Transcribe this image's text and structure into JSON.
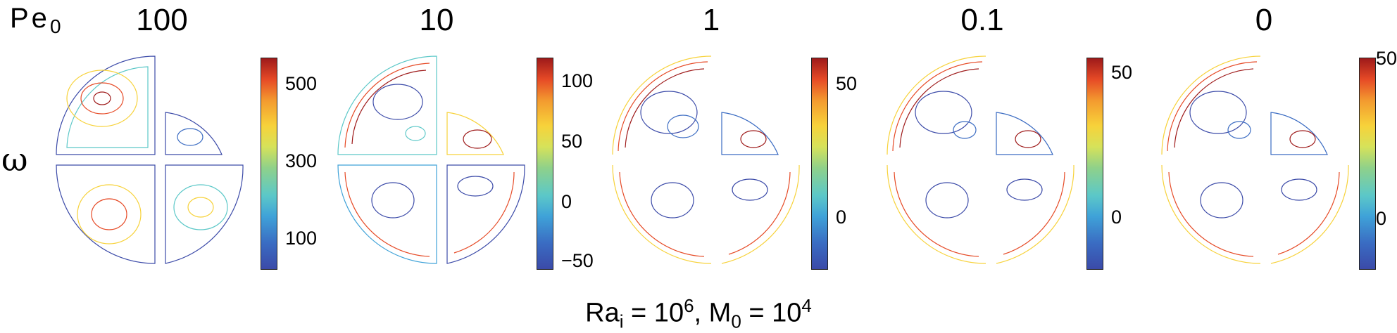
{
  "row_label": {
    "main": "Pe",
    "sub": "0"
  },
  "omega_label": "ω",
  "columns": [
    {
      "title": "100",
      "colorbar_ticks": [
        "500",
        "300",
        "100"
      ]
    },
    {
      "title": "10",
      "colorbar_ticks": [
        "100",
        "50",
        "0",
        "−50"
      ]
    },
    {
      "title": "1",
      "colorbar_ticks": [
        "50",
        "0"
      ]
    },
    {
      "title": "0.1",
      "colorbar_ticks": [
        "50",
        "0"
      ]
    },
    {
      "title": "0",
      "colorbar_ticks": [
        "50",
        "0"
      ]
    }
  ],
  "footer": {
    "ra": "Ra",
    "ra_sub": "i",
    "ra_eq": " = 10",
    "ra_exp": "6",
    "sep": ",  ",
    "m": "M",
    "m_sub": "0",
    "m_eq": " = 10",
    "m_exp": "4"
  },
  "colors": {
    "low": "#3b4aa8",
    "mid": "#f7d23a",
    "high": "#9e1a1a"
  }
}
